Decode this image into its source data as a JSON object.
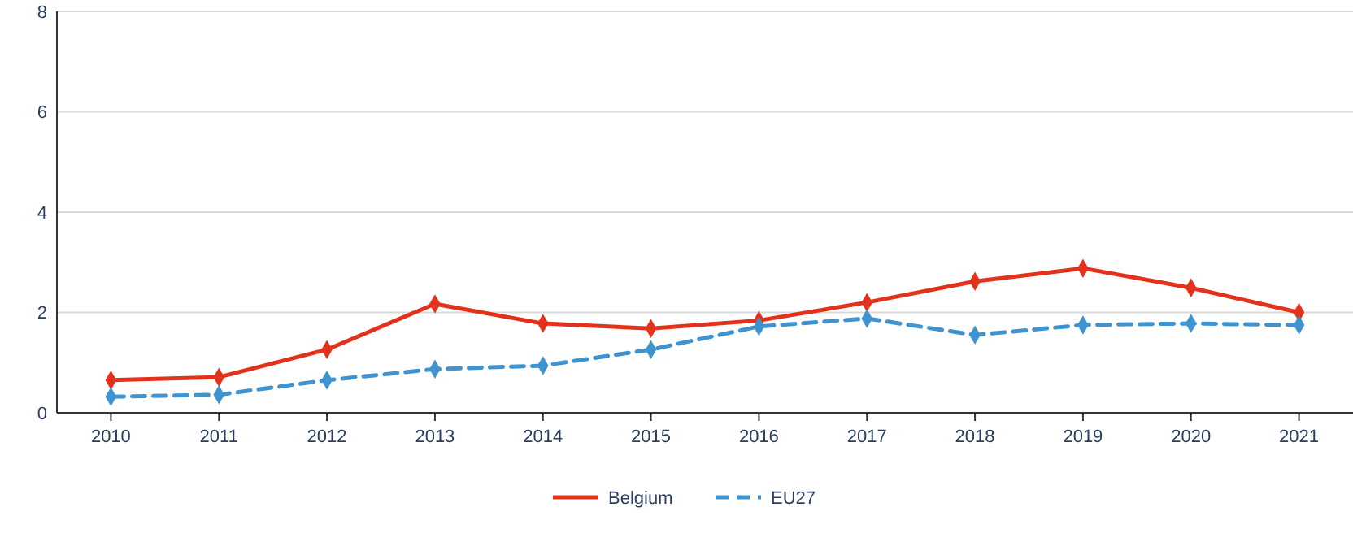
{
  "chart_data": {
    "type": "line",
    "categories": [
      "2010",
      "2011",
      "2012",
      "2013",
      "2014",
      "2015",
      "2016",
      "2017",
      "2018",
      "2019",
      "2020",
      "2021"
    ],
    "series": [
      {
        "name": "Belgium",
        "color": "#e3321b",
        "line_style": "solid",
        "values": [
          0.65,
          0.71,
          1.26,
          2.17,
          1.78,
          1.68,
          1.84,
          2.2,
          2.62,
          2.88,
          2.49,
          2.0
        ]
      },
      {
        "name": "EU27",
        "color": "#3f94d0",
        "line_style": "dashed",
        "values": [
          0.32,
          0.36,
          0.65,
          0.87,
          0.94,
          1.26,
          1.72,
          1.88,
          1.55,
          1.75,
          1.78,
          1.75
        ]
      }
    ],
    "ylim": [
      0,
      8
    ],
    "yticks": [
      0,
      2,
      4,
      6,
      8
    ],
    "grid": "y",
    "legend": "bottom",
    "marker": "diamond"
  }
}
